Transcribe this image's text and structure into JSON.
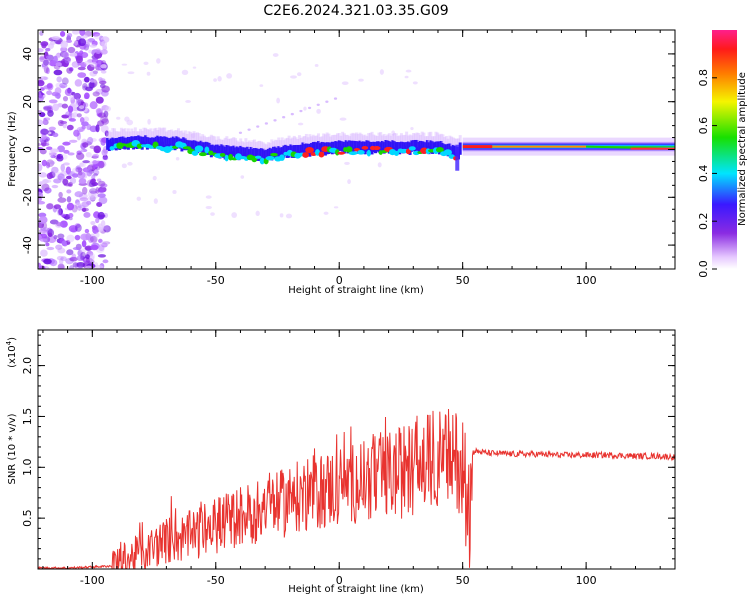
{
  "title": "C2E6.2024.321.03.35.G09",
  "chart_data": [
    {
      "type": "heatmap",
      "xlabel": "Height of straight line (km)",
      "ylabel": "Frequency (Hz)",
      "xlim": [
        -122,
        136
      ],
      "ylim": [
        -50,
        50
      ],
      "xticks": [
        -100,
        -50,
        0,
        50,
        100
      ],
      "yticks": [
        -40,
        -20,
        0,
        20,
        40
      ],
      "colorbar": {
        "label": "Normalized spectral amplitude",
        "range": [
          0.0,
          1.0
        ],
        "ticks": [
          "0.0",
          "0.2",
          "0.4",
          "0.6",
          "0.8"
        ]
      },
      "ridge": {
        "x": [
          -93,
          -80,
          -65,
          -50,
          -40,
          -30,
          -20,
          -10,
          0,
          10,
          20,
          30,
          40,
          48,
          50,
          60,
          80,
          100,
          120,
          135
        ],
        "freq": [
          1,
          1.5,
          1,
          -2,
          -3,
          -4,
          -2,
          -1,
          -0.5,
          -0.5,
          -0.5,
          -0.5,
          -0.5,
          -3,
          1.5,
          1.5,
          1.5,
          1,
          0.5,
          0.5
        ]
      },
      "grid": false
    },
    {
      "type": "line",
      "xlabel": "Height of straight line (km)",
      "ylabel": "SNR (10 * v/v)",
      "y_scale_label": "(x10",
      "y_scale_exp": "4",
      "xlim": [
        -122,
        136
      ],
      "ylim": [
        0,
        2.35
      ],
      "xticks": [
        -100,
        -50,
        0,
        50,
        100
      ],
      "yticks": [
        "0.5",
        "1.0",
        "1.5",
        "2.0"
      ],
      "series": [
        {
          "color": "#e8332f",
          "x": [
            -122,
            -110,
            -100,
            -92,
            -88,
            -80,
            -75,
            -70,
            -65,
            -60,
            -55,
            -50,
            -45,
            -40,
            -35,
            -31,
            -30,
            -25,
            -20,
            -15,
            -10,
            -5,
            0,
            5,
            10,
            15,
            20,
            25,
            30,
            35,
            40,
            45,
            50,
            52,
            53,
            55,
            60,
            70,
            80,
            90,
            100,
            110,
            120,
            130,
            136
          ],
          "y": [
            0.01,
            0.01,
            0.02,
            0.03,
            0.07,
            0.15,
            0.22,
            0.28,
            0.3,
            0.32,
            0.38,
            0.42,
            0.48,
            0.52,
            0.55,
            0.6,
            0.65,
            0.62,
            0.68,
            0.72,
            0.75,
            0.78,
            0.82,
            0.85,
            0.88,
            0.9,
            0.92,
            0.95,
            1.0,
            1.05,
            1.1,
            1.08,
            1.05,
            0.55,
            1.12,
            1.16,
            1.14,
            1.13,
            1.13,
            1.12,
            1.12,
            1.12,
            1.11,
            1.11,
            1.1
          ]
        }
      ],
      "grid": false
    }
  ]
}
